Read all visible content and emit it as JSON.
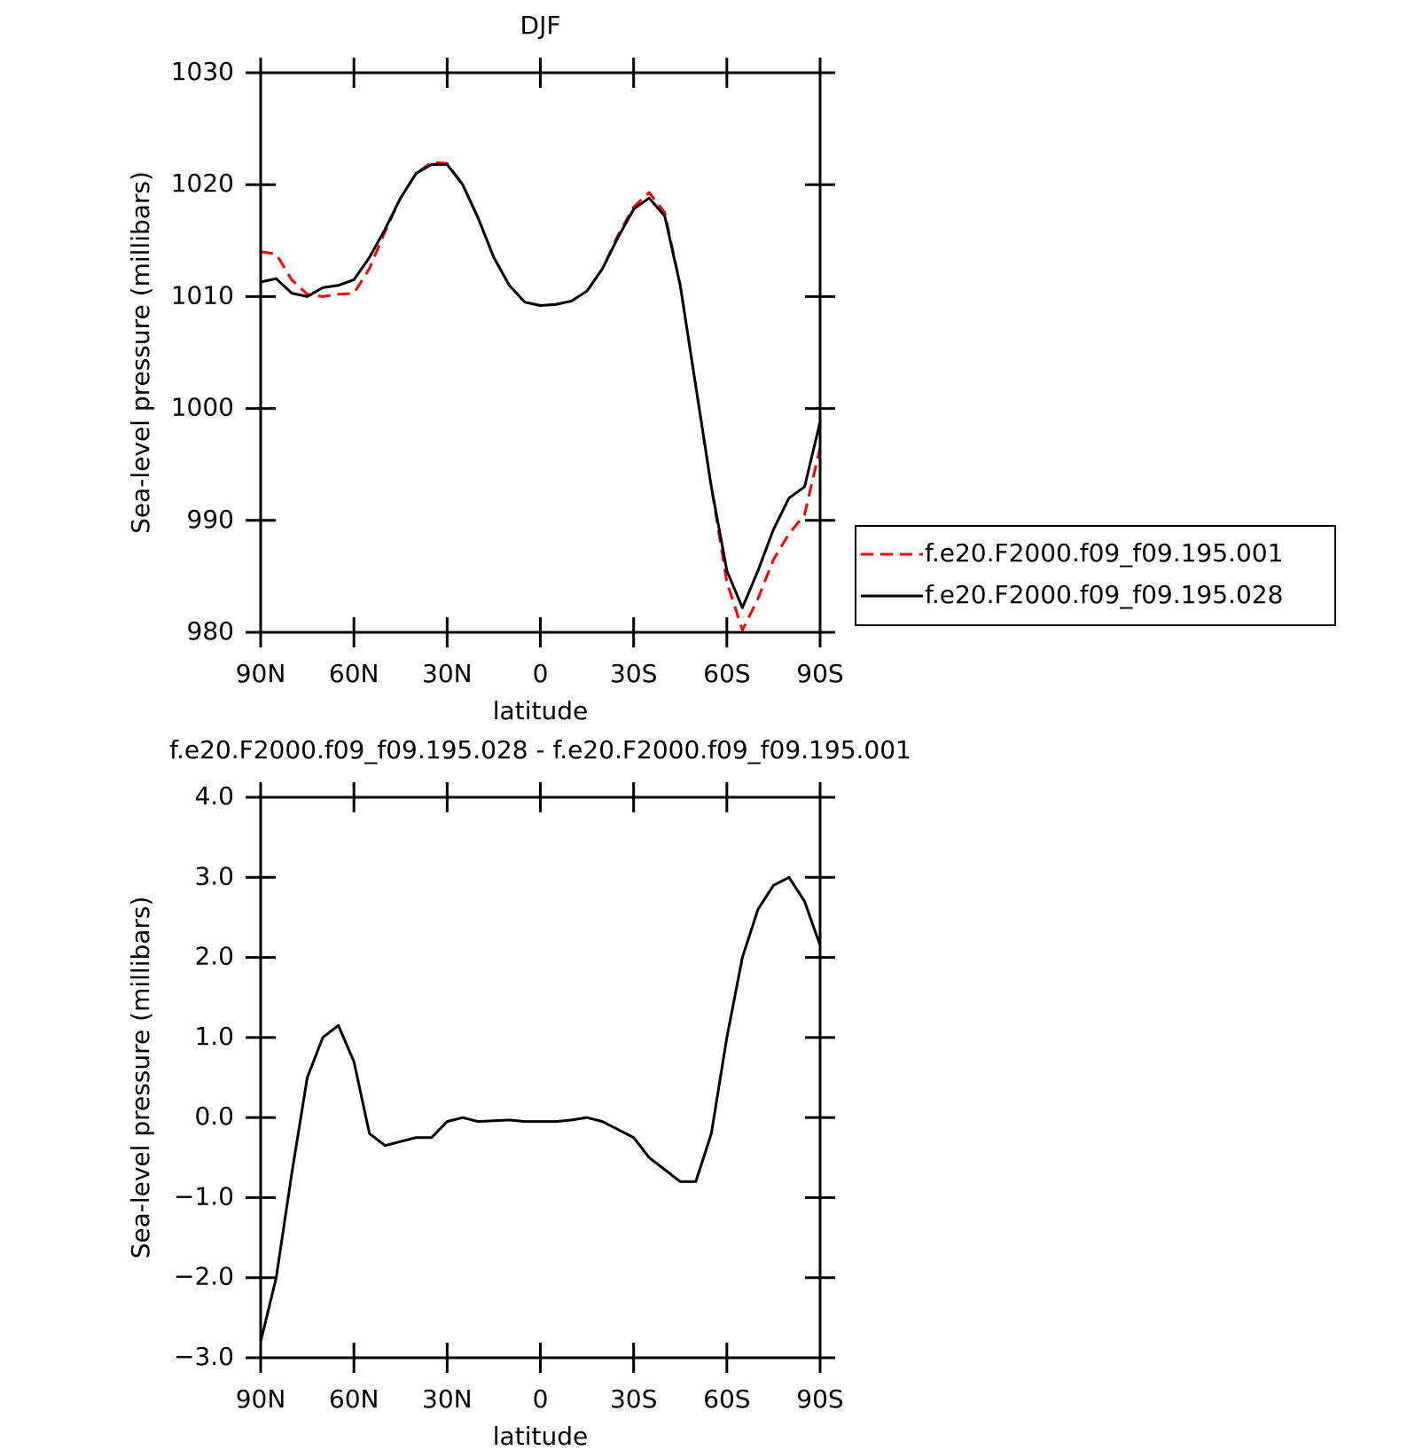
{
  "chart_data": [
    {
      "type": "line",
      "title": "DJF",
      "ylabel": "Sea-level pressure (millibars)",
      "xlabel": "latitude",
      "x": [
        90,
        85,
        80,
        75,
        70,
        65,
        60,
        55,
        50,
        45,
        40,
        35,
        30,
        25,
        20,
        15,
        10,
        5,
        0,
        -5,
        -10,
        -15,
        -20,
        -25,
        -30,
        -35,
        -40,
        -45,
        -50,
        -55,
        -60,
        -65,
        -70,
        -75,
        -80,
        -85,
        -90
      ],
      "xlim": [
        90,
        -90
      ],
      "xticks": [
        {
          "value": 90,
          "label": "90N"
        },
        {
          "value": 60,
          "label": "60N"
        },
        {
          "value": 30,
          "label": "30N"
        },
        0,
        {
          "value": -30,
          "label": "30S"
        },
        {
          "value": -60,
          "label": "60S"
        },
        {
          "value": -90,
          "label": "90S"
        }
      ],
      "ylim": [
        980,
        1030
      ],
      "yticks": [
        980,
        990,
        1000,
        1010,
        1020,
        1030
      ],
      "legend": "right",
      "series": [
        {
          "name": "f.e20.F2000.f09_f09.195.001",
          "color": "#ff0000",
          "dashed": true,
          "values": [
            1014.0,
            1013.8,
            1011.5,
            1010.2,
            1010.0,
            1010.2,
            1010.3,
            1012.5,
            1015.8,
            1018.8,
            1021.0,
            1022.0,
            1021.9,
            1020.0,
            1017.0,
            1013.5,
            1011.0,
            1009.5,
            1009.2,
            1009.3,
            1009.6,
            1010.5,
            1012.5,
            1015.5,
            1018.0,
            1019.3,
            1017.5,
            1011.0,
            1002.0,
            993.0,
            984.5,
            980.2,
            983.0,
            986.5,
            988.8,
            990.5,
            996.5
          ]
        },
        {
          "name": "f.e20.F2000.f09_f09.195.028",
          "color": "#000000",
          "dashed": false,
          "values": [
            1011.3,
            1011.6,
            1010.3,
            1010.0,
            1010.8,
            1011.0,
            1011.5,
            1013.5,
            1016.0,
            1018.8,
            1021.0,
            1021.8,
            1021.8,
            1020.0,
            1017.0,
            1013.5,
            1011.0,
            1009.5,
            1009.2,
            1009.3,
            1009.6,
            1010.5,
            1012.5,
            1015.3,
            1017.8,
            1018.8,
            1017.2,
            1011.0,
            1002.0,
            993.0,
            985.5,
            982.2,
            985.5,
            989.2,
            992.0,
            993.0,
            998.8
          ]
        }
      ]
    },
    {
      "type": "line",
      "title": "f.e20.F2000.f09_f09.195.028 - f.e20.F2000.f09_f09.195.001",
      "ylabel": "Sea-level pressure (millibars)",
      "xlabel": "latitude",
      "x": [
        90,
        85,
        80,
        75,
        70,
        65,
        60,
        55,
        50,
        45,
        40,
        35,
        30,
        25,
        20,
        15,
        10,
        5,
        0,
        -5,
        -10,
        -15,
        -20,
        -25,
        -30,
        -35,
        -40,
        -45,
        -50,
        -55,
        -60,
        -65,
        -70,
        -75,
        -80,
        -85,
        -90
      ],
      "xlim": [
        90,
        -90
      ],
      "xticks": [
        {
          "value": 90,
          "label": "90N"
        },
        {
          "value": 60,
          "label": "60N"
        },
        {
          "value": 30,
          "label": "30N"
        },
        0,
        {
          "value": -30,
          "label": "30S"
        },
        {
          "value": -60,
          "label": "60S"
        },
        {
          "value": -90,
          "label": "90S"
        }
      ],
      "ylim": [
        -3,
        4
      ],
      "yticks": [
        {
          "value": -3,
          "label": "−3.0"
        },
        {
          "value": -2,
          "label": "−2.0"
        },
        {
          "value": -1,
          "label": "−1.0"
        },
        {
          "value": 0,
          "label": "0.0"
        },
        {
          "value": 1,
          "label": "1.0"
        },
        {
          "value": 2,
          "label": "2.0"
        },
        {
          "value": 3,
          "label": "3.0"
        },
        {
          "value": 4,
          "label": "4.0"
        }
      ],
      "series": [
        {
          "color": "#000000",
          "dashed": false,
          "values": [
            -2.8,
            -2.0,
            -0.7,
            0.5,
            1.0,
            1.15,
            0.7,
            -0.2,
            -0.35,
            -0.3,
            -0.25,
            -0.25,
            -0.05,
            0.0,
            -0.05,
            -0.04,
            -0.03,
            -0.05,
            -0.05,
            -0.05,
            -0.03,
            0.0,
            -0.05,
            -0.15,
            -0.25,
            -0.5,
            -0.65,
            -0.8,
            -0.8,
            -0.2,
            1.0,
            2.0,
            2.6,
            2.9,
            3.0,
            2.7,
            2.15
          ]
        }
      ]
    }
  ]
}
